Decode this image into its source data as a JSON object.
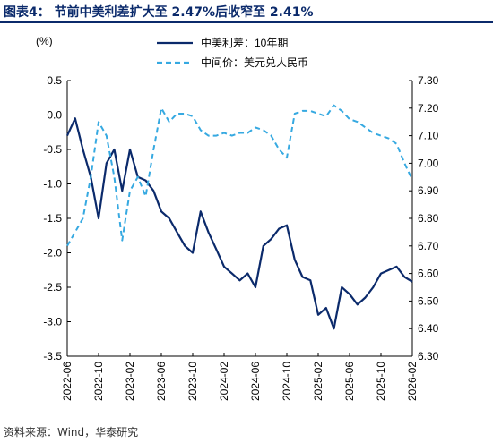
{
  "title": "图表4：  节前中美利差扩大至 2.47%后收窄至 2.41%",
  "source": "资料来源：Wind，华泰研究",
  "chart_data": {
    "type": "line",
    "left_axis_label": "(%)",
    "left_ticks": [
      "0.5",
      "0.0",
      "-0.5",
      "-1.0",
      "-1.5",
      "-2.0",
      "-2.5",
      "-3.0",
      "-3.5"
    ],
    "right_ticks": [
      "7.30",
      "7.20",
      "7.10",
      "7.00",
      "6.90",
      "6.80",
      "6.70",
      "6.60",
      "6.50",
      "6.40",
      "6.30"
    ],
    "x_ticks": [
      "2022-06",
      "2022-10",
      "2023-02",
      "2023-06",
      "2023-10",
      "2024-02",
      "2024-06",
      "2024-10",
      "2025-02",
      "2025-06",
      "2025-10",
      "2026-02"
    ],
    "ylim_left": [
      -3.5,
      0.5
    ],
    "ylim_right": [
      6.3,
      7.3
    ],
    "legend_position": "top-center",
    "series": [
      {
        "name": "中美利差：10年期",
        "axis": "left",
        "color": "#0b2a6b",
        "x": [
          "2022-06",
          "2022-07",
          "2022-08",
          "2022-09",
          "2022-10",
          "2022-11",
          "2022-12",
          "2023-01",
          "2023-02",
          "2023-03",
          "2023-04",
          "2023-05",
          "2023-06",
          "2023-07",
          "2023-08",
          "2023-09",
          "2023-10",
          "2023-11",
          "2023-12",
          "2024-01",
          "2024-02",
          "2024-03",
          "2024-04",
          "2024-05",
          "2024-06",
          "2024-07",
          "2024-08",
          "2024-09",
          "2024-10",
          "2024-11",
          "2024-12",
          "2025-01",
          "2025-02",
          "2025-03",
          "2025-04",
          "2025-05",
          "2025-06",
          "2025-07",
          "2025-08",
          "2025-09",
          "2025-10",
          "2025-11",
          "2025-12",
          "2026-01",
          "2026-02"
        ],
        "values": [
          -0.3,
          -0.05,
          -0.5,
          -0.9,
          -1.5,
          -0.7,
          -0.5,
          -1.1,
          -0.5,
          -0.9,
          -0.95,
          -1.1,
          -1.4,
          -1.5,
          -1.7,
          -1.9,
          -2.0,
          -1.4,
          -1.7,
          -1.95,
          -2.2,
          -2.3,
          -2.4,
          -2.3,
          -2.5,
          -1.9,
          -1.8,
          -1.65,
          -1.6,
          -2.1,
          -2.35,
          -2.4,
          -2.9,
          -2.8,
          -3.1,
          -2.5,
          -2.6,
          -2.75,
          -2.65,
          -2.5,
          -2.3,
          -2.25,
          -2.2,
          -2.35,
          -2.42
        ]
      },
      {
        "name": "中间价：美元兑人民币",
        "axis": "right",
        "color": "#36a9e1",
        "x": [
          "2022-06",
          "2022-07",
          "2022-08",
          "2022-09",
          "2022-10",
          "2022-11",
          "2022-12",
          "2023-01",
          "2023-02",
          "2023-03",
          "2023-04",
          "2023-05",
          "2023-06",
          "2023-07",
          "2023-08",
          "2023-09",
          "2023-10",
          "2023-11",
          "2023-12",
          "2024-01",
          "2024-02",
          "2024-03",
          "2024-04",
          "2024-05",
          "2024-06",
          "2024-07",
          "2024-08",
          "2024-09",
          "2024-10",
          "2024-11",
          "2024-12",
          "2025-01",
          "2025-02",
          "2025-03",
          "2025-04",
          "2025-05",
          "2025-06",
          "2025-07",
          "2025-08",
          "2025-09",
          "2025-10",
          "2025-11",
          "2025-12",
          "2026-01",
          "2026-02"
        ],
        "values": [
          6.7,
          6.75,
          6.8,
          6.95,
          7.15,
          7.1,
          6.95,
          6.72,
          6.9,
          6.95,
          6.88,
          7.05,
          7.2,
          7.15,
          7.18,
          7.18,
          7.17,
          7.12,
          7.1,
          7.1,
          7.11,
          7.1,
          7.11,
          7.11,
          7.13,
          7.12,
          7.1,
          7.05,
          7.02,
          7.18,
          7.19,
          7.19,
          7.18,
          7.17,
          7.21,
          7.19,
          7.16,
          7.15,
          7.13,
          7.11,
          7.1,
          7.09,
          7.07,
          7.0,
          6.94
        ]
      }
    ]
  }
}
